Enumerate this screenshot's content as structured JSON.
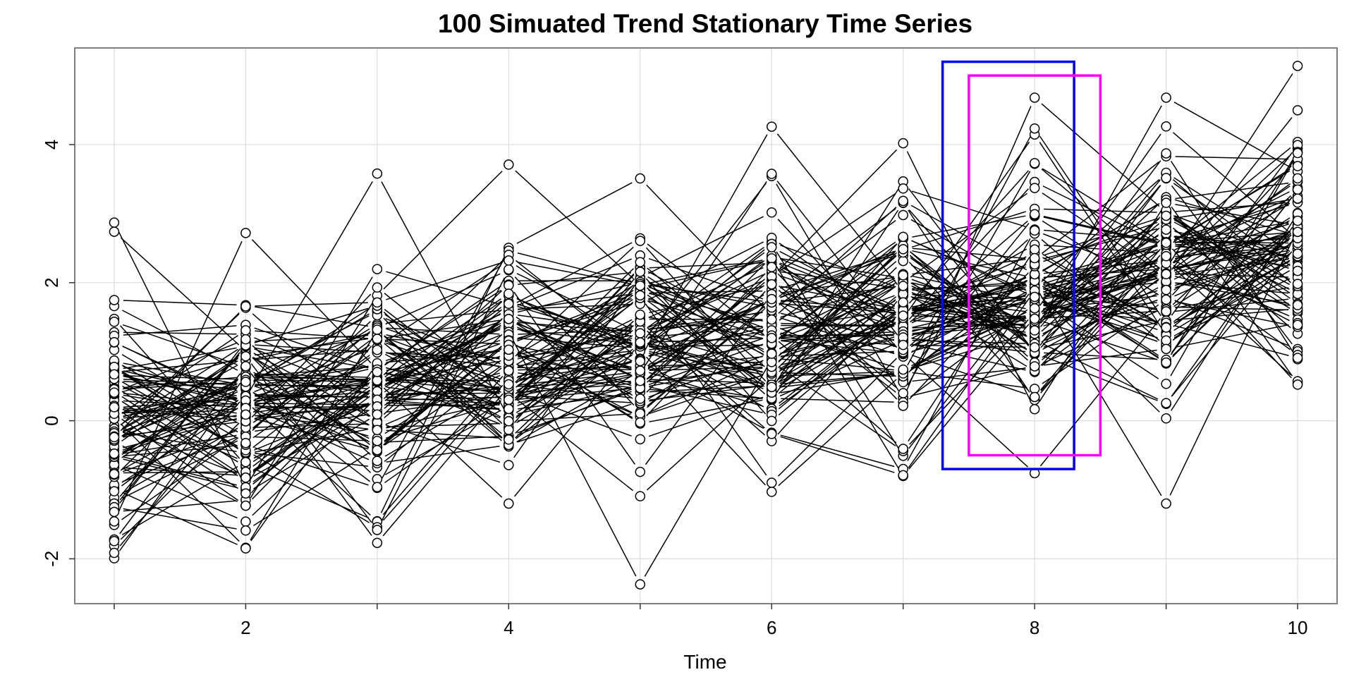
{
  "chart_data": {
    "type": "scatter",
    "title": "100 Simuated Trend Stationary Time Series",
    "xlabel": "Time",
    "ylabel": "",
    "xlim": [
      0.7,
      10.3
    ],
    "ylim": [
      -2.65,
      5.4
    ],
    "x_ticks": [
      2,
      4,
      6,
      8,
      10
    ],
    "x_tick_labels": [
      "2",
      "4",
      "6",
      "8",
      "10"
    ],
    "x_minor_ticks": [
      1,
      3,
      5,
      7,
      9
    ],
    "y_ticks": [
      -2,
      0,
      2,
      4
    ],
    "y_tick_labels": [
      "-2",
      "0",
      "2",
      "4"
    ],
    "grid": true,
    "series_count": 100,
    "trend": {
      "intercept": 0.0,
      "slope_per_step": 0.25,
      "start_time": 1
    },
    "noise_sd": 0.85,
    "extremes": [
      {
        "x": 1,
        "y": 2.87
      },
      {
        "x": 1,
        "y": -1.72
      },
      {
        "x": 2,
        "y": 2.72
      },
      {
        "x": 2,
        "y": -1.84
      },
      {
        "x": 3,
        "y": 3.58
      },
      {
        "x": 3,
        "y": -1.77
      },
      {
        "x": 4,
        "y": 3.71
      },
      {
        "x": 4,
        "y": -1.2
      },
      {
        "x": 5,
        "y": 3.51
      },
      {
        "x": 5,
        "y": -2.37
      },
      {
        "x": 6,
        "y": 4.26
      },
      {
        "x": 6,
        "y": -1.03
      },
      {
        "x": 7,
        "y": 4.02
      },
      {
        "x": 7,
        "y": -0.79
      },
      {
        "x": 8,
        "y": 4.68
      },
      {
        "x": 8,
        "y": -0.76
      },
      {
        "x": 9,
        "y": 4.68
      },
      {
        "x": 9,
        "y": -1.2
      },
      {
        "x": 10,
        "y": 5.14
      },
      {
        "x": 10,
        "y": 0.54
      }
    ],
    "annotations": [
      {
        "type": "rect",
        "color": "#0000ff",
        "x0": 7.3,
        "x1": 8.3,
        "y0": -0.7,
        "y1": 5.2
      },
      {
        "type": "rect",
        "color": "#ff00ff",
        "x0": 7.5,
        "x1": 8.5,
        "y0": -0.5,
        "y1": 5.0
      }
    ],
    "colors": {
      "line": "#000000",
      "point_stroke": "#000000",
      "grid": "#dddddd",
      "frame": "#7f7f7f"
    }
  }
}
